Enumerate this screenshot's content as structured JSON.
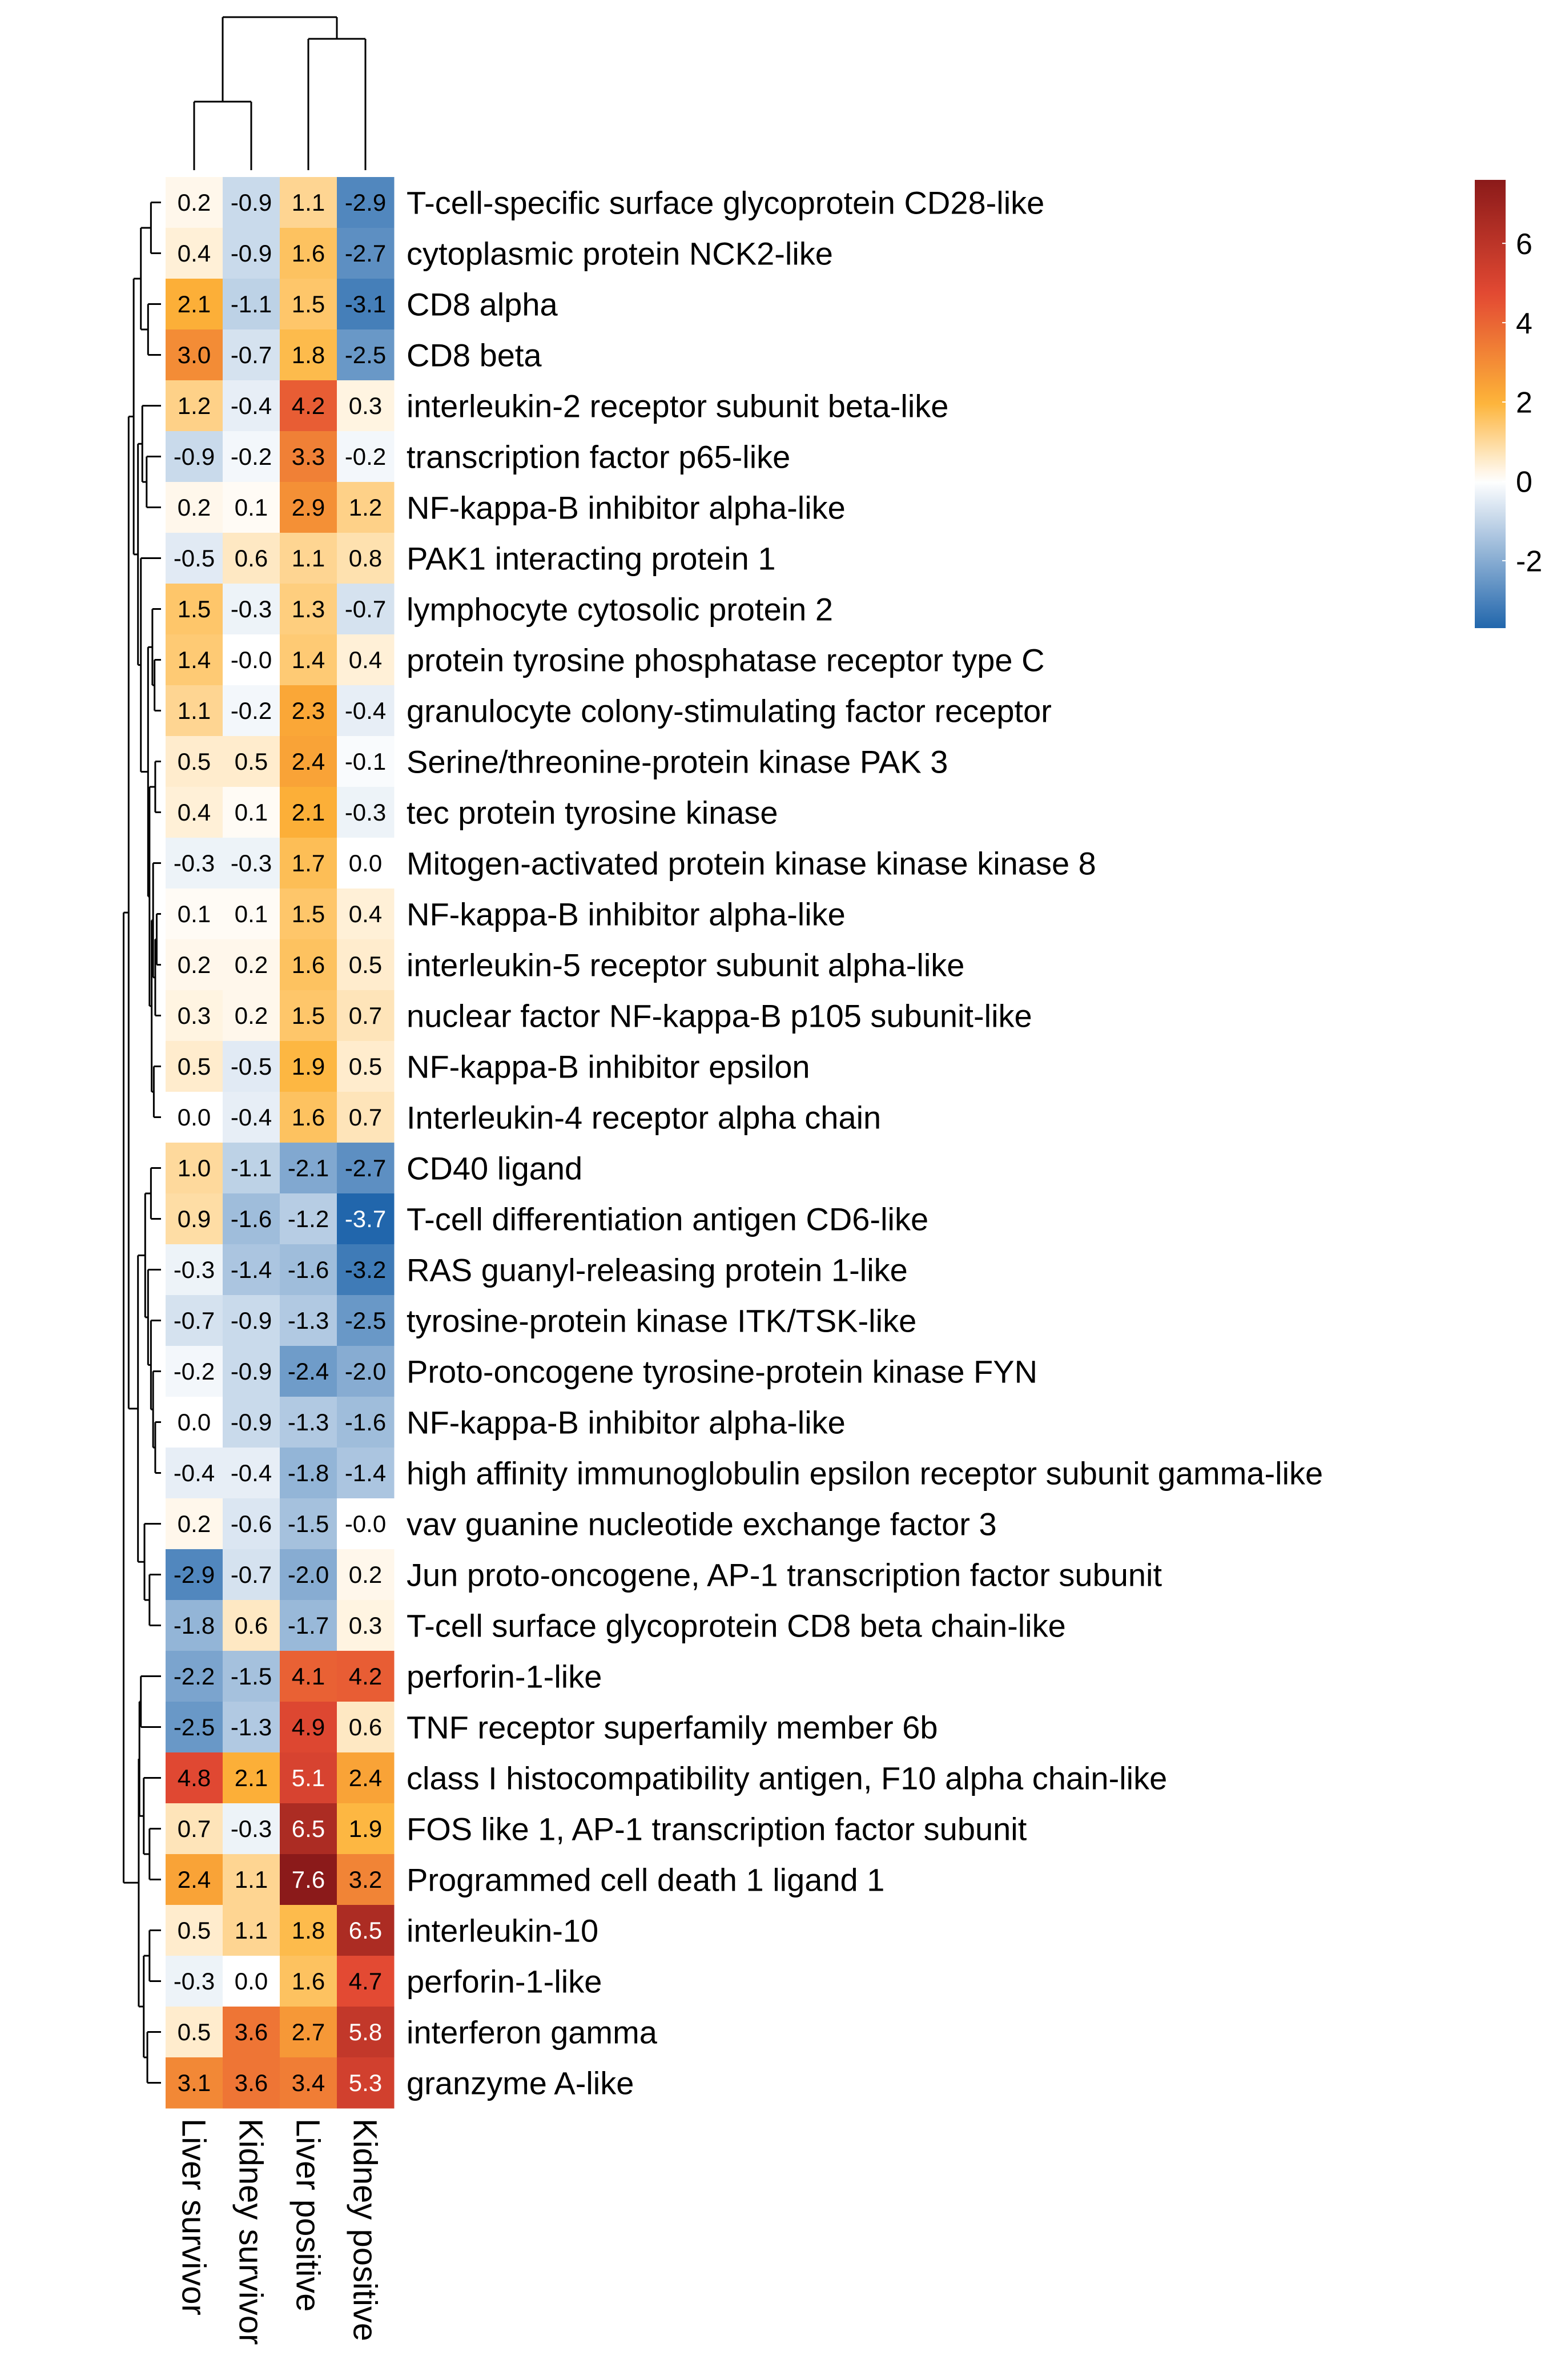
{
  "chart_data": {
    "type": "heatmap",
    "title": "",
    "columns": [
      "Liver survivor",
      "Kidney survivor",
      "Liver positive",
      "Kidney positive"
    ],
    "rows": [
      "T-cell-specific surface glycoprotein CD28-like",
      "cytoplasmic protein NCK2-like",
      "CD8 alpha",
      "CD8 beta",
      "interleukin-2 receptor subunit beta-like",
      "transcription factor p65-like",
      "NF-kappa-B inhibitor alpha-like",
      "PAK1 interacting protein 1",
      "lymphocyte cytosolic protein 2",
      "protein tyrosine phosphatase receptor type C",
      "granulocyte colony-stimulating factor receptor",
      "Serine/threonine-protein kinase PAK 3",
      "tec protein tyrosine kinase",
      "Mitogen-activated protein kinase kinase kinase 8",
      "NF-kappa-B inhibitor alpha-like",
      "interleukin-5 receptor subunit alpha-like",
      "nuclear factor NF-kappa-B p105 subunit-like",
      "NF-kappa-B inhibitor epsilon",
      "Interleukin-4 receptor alpha chain",
      "CD40 ligand",
      "T-cell differentiation antigen CD6-like",
      "RAS guanyl-releasing protein 1-like",
      "tyrosine-protein kinase ITK/TSK-like",
      "Proto-oncogene tyrosine-protein kinase FYN",
      "NF-kappa-B inhibitor alpha-like",
      "high affinity immunoglobulin epsilon receptor subunit gamma-like",
      "vav guanine nucleotide exchange factor 3",
      "Jun proto-oncogene, AP-1 transcription factor subunit",
      "T-cell surface glycoprotein CD8 beta chain-like",
      "perforin-1-like",
      "TNF receptor superfamily member 6b",
      "class I histocompatibility antigen, F10 alpha chain-like",
      "FOS like 1, AP-1 transcription factor subunit",
      "Programmed cell death 1 ligand 1",
      "interleukin-10",
      "perforin-1-like",
      "interferon gamma",
      "granzyme A-like"
    ],
    "values": [
      [
        0.2,
        -0.9,
        1.1,
        -2.9
      ],
      [
        0.4,
        -0.9,
        1.6,
        -2.7
      ],
      [
        2.1,
        -1.1,
        1.5,
        -3.1
      ],
      [
        3.0,
        -0.7,
        1.8,
        -2.5
      ],
      [
        1.2,
        -0.4,
        4.2,
        0.3
      ],
      [
        -0.9,
        -0.2,
        3.3,
        -0.2
      ],
      [
        0.2,
        0.1,
        2.9,
        1.2
      ],
      [
        -0.5,
        0.6,
        1.1,
        0.8
      ],
      [
        1.5,
        -0.3,
        1.3,
        -0.7
      ],
      [
        1.4,
        -0.0,
        1.4,
        0.4
      ],
      [
        1.1,
        -0.2,
        2.3,
        -0.4
      ],
      [
        0.5,
        0.5,
        2.4,
        -0.1
      ],
      [
        0.4,
        0.1,
        2.1,
        -0.3
      ],
      [
        -0.3,
        -0.3,
        1.7,
        0.0
      ],
      [
        0.1,
        0.1,
        1.5,
        0.4
      ],
      [
        0.2,
        0.2,
        1.6,
        0.5
      ],
      [
        0.3,
        0.2,
        1.5,
        0.7
      ],
      [
        0.5,
        -0.5,
        1.9,
        0.5
      ],
      [
        0.0,
        -0.4,
        1.6,
        0.7
      ],
      [
        1.0,
        -1.1,
        -2.1,
        -2.7
      ],
      [
        0.9,
        -1.6,
        -1.2,
        -3.7
      ],
      [
        -0.3,
        -1.4,
        -1.6,
        -3.2
      ],
      [
        -0.7,
        -0.9,
        -1.3,
        -2.5
      ],
      [
        -0.2,
        -0.9,
        -2.4,
        -2.0
      ],
      [
        0.0,
        -0.9,
        -1.3,
        -1.6
      ],
      [
        -0.4,
        -0.4,
        -1.8,
        -1.4
      ],
      [
        0.2,
        -0.6,
        -1.5,
        -0.0
      ],
      [
        -2.9,
        -0.7,
        -2.0,
        0.2
      ],
      [
        -1.8,
        0.6,
        -1.7,
        0.3
      ],
      [
        -2.2,
        -1.5,
        4.1,
        4.2
      ],
      [
        -2.5,
        -1.3,
        4.9,
        0.6
      ],
      [
        4.8,
        2.1,
        5.1,
        2.4
      ],
      [
        0.7,
        -0.3,
        6.5,
        1.9
      ],
      [
        2.4,
        1.1,
        7.6,
        3.2
      ],
      [
        0.5,
        1.1,
        1.8,
        6.5
      ],
      [
        -0.3,
        0.0,
        1.6,
        4.7
      ],
      [
        0.5,
        3.6,
        2.7,
        5.8
      ],
      [
        3.1,
        3.6,
        3.4,
        5.3
      ]
    ],
    "cell_labels": [
      [
        "0.2",
        "-0.9",
        "1.1",
        "-2.9"
      ],
      [
        "0.4",
        "-0.9",
        "1.6",
        "-2.7"
      ],
      [
        "2.1",
        "-1.1",
        "1.5",
        "-3.1"
      ],
      [
        "3.0",
        "-0.7",
        "1.8",
        "-2.5"
      ],
      [
        "1.2",
        "-0.4",
        "4.2",
        "0.3"
      ],
      [
        "-0.9",
        "-0.2",
        "3.3",
        "-0.2"
      ],
      [
        "0.2",
        "0.1",
        "2.9",
        "1.2"
      ],
      [
        "-0.5",
        "0.6",
        "1.1",
        "0.8"
      ],
      [
        "1.5",
        "-0.3",
        "1.3",
        "-0.7"
      ],
      [
        "1.4",
        "-0.0",
        "1.4",
        "0.4"
      ],
      [
        "1.1",
        "-0.2",
        "2.3",
        "-0.4"
      ],
      [
        "0.5",
        "0.5",
        "2.4",
        "-0.1"
      ],
      [
        "0.4",
        "0.1",
        "2.1",
        "-0.3"
      ],
      [
        "-0.3",
        "-0.3",
        "1.7",
        "0.0"
      ],
      [
        "0.1",
        "0.1",
        "1.5",
        "0.4"
      ],
      [
        "0.2",
        "0.2",
        "1.6",
        "0.5"
      ],
      [
        "0.3",
        "0.2",
        "1.5",
        "0.7"
      ],
      [
        "0.5",
        "-0.5",
        "1.9",
        "0.5"
      ],
      [
        "0.0",
        "-0.4",
        "1.6",
        "0.7"
      ],
      [
        "1.0",
        "-1.1",
        "-2.1",
        "-2.7"
      ],
      [
        "0.9",
        "-1.6",
        "-1.2",
        "-3.7"
      ],
      [
        "-0.3",
        "-1.4",
        "-1.6",
        "-3.2"
      ],
      [
        "-0.7",
        "-0.9",
        "-1.3",
        "-2.5"
      ],
      [
        "-0.2",
        "-0.9",
        "-2.4",
        "-2.0"
      ],
      [
        "0.0",
        "-0.9",
        "-1.3",
        "-1.6"
      ],
      [
        "-0.4",
        "-0.4",
        "-1.8",
        "-1.4"
      ],
      [
        "0.2",
        "-0.6",
        "-1.5",
        "-0.0"
      ],
      [
        "-2.9",
        "-0.7",
        "-2.0",
        "0.2"
      ],
      [
        "-1.8",
        "0.6",
        "-1.7",
        "0.3"
      ],
      [
        "-2.2",
        "-1.5",
        "4.1",
        "4.2"
      ],
      [
        "-2.5",
        "-1.3",
        "4.9",
        "0.6"
      ],
      [
        "4.8",
        "2.1",
        "5.1",
        "2.4"
      ],
      [
        "0.7",
        "-0.3",
        "6.5",
        "1.9"
      ],
      [
        "2.4",
        "1.1",
        "7.6",
        "3.2"
      ],
      [
        "0.5",
        "1.1",
        "1.8",
        "6.5"
      ],
      [
        "-0.3",
        "0.0",
        "1.6",
        "4.7"
      ],
      [
        "0.5",
        "3.6",
        "2.7",
        "5.8"
      ],
      [
        "3.1",
        "3.6",
        "3.4",
        "5.3"
      ]
    ],
    "color_scale": {
      "min": -3.7,
      "max": 7.6,
      "center": 0,
      "colors": [
        "#2166ac",
        "#ffffff",
        "#fdb338",
        "#e34a33",
        "#8b1a1a"
      ],
      "legend": "right",
      "ticks": [
        -2,
        0,
        2,
        4,
        6
      ],
      "tick_labels": [
        "-2",
        "0",
        "2",
        "4",
        "6"
      ]
    },
    "column_dendrogram": {
      "merges": [
        [
          0,
          1
        ],
        [
          2,
          3
        ],
        [
          -1,
          -2
        ]
      ]
    },
    "row_dendrogram": "hierarchical clustering tree shown on the left"
  }
}
